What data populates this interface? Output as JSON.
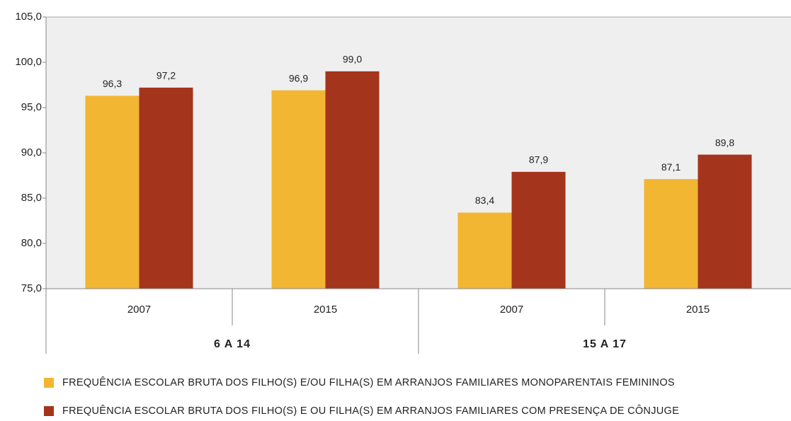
{
  "chart_data": {
    "type": "bar",
    "categories": [
      "2007",
      "2015",
      "2007",
      "2015"
    ],
    "groups": [
      "6 A 14",
      "15 A 17"
    ],
    "series": [
      {
        "name": "FREQUÊNCIA ESCOLAR BRUTA DOS FILHO(S) E/OU FILHA(S) EM ARRANJOS FAMILIARES MONOPARENTAIS FEMININOS",
        "color": "#f2b632",
        "values": [
          96.3,
          96.9,
          83.4,
          87.1
        ],
        "value_labels": [
          "96,3",
          "96,9",
          "83,4",
          "87,1"
        ]
      },
      {
        "name": "FREQUÊNCIA ESCOLAR BRUTA DOS FILHO(S) E OU FILHA(S) EM ARRANJOS FAMILIARES COM PRESENÇA DE CÔNJUGE",
        "color": "#a5341c",
        "values": [
          97.2,
          99.0,
          87.9,
          89.8
        ],
        "value_labels": [
          "97,2",
          "99,0",
          "87,9",
          "89,8"
        ]
      }
    ],
    "ylim": [
      75,
      105
    ],
    "yticks": [
      {
        "value": 75,
        "label": "75,0"
      },
      {
        "value": 80,
        "label": "80,0"
      },
      {
        "value": 85,
        "label": "85,0"
      },
      {
        "value": 90,
        "label": "90,0"
      },
      {
        "value": 95,
        "label": "95,0"
      },
      {
        "value": 100,
        "label": "100,0"
      },
      {
        "value": 105,
        "label": "105,0"
      }
    ]
  }
}
